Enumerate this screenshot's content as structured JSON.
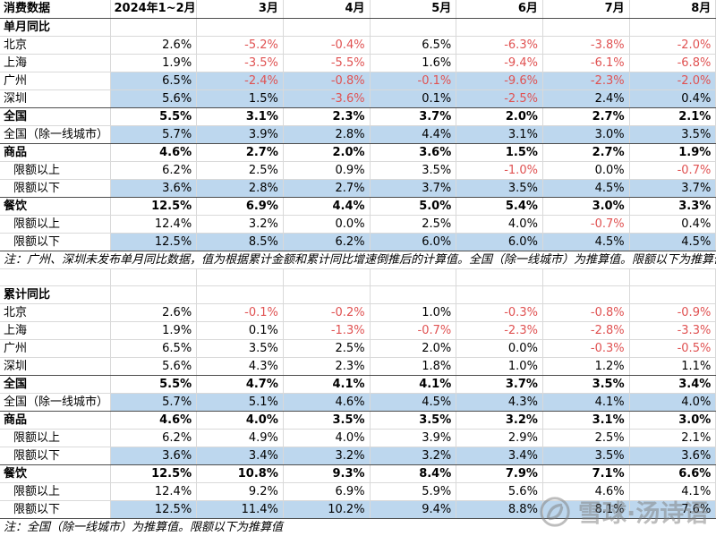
{
  "table": {
    "header_title": "消费数据",
    "columns": [
      "2024年1~2月",
      "3月",
      "4月",
      "5月",
      "6月",
      "7月",
      "8月"
    ],
    "sections": [
      {
        "title": "单月同比",
        "note": "注：广州、深圳未发布单月同比数据，值为根据累计金额和累计同比增速倒推后的计算值。全国（除一线城市）为推算值。限额以下为推算值",
        "rows": [
          {
            "label": "北京",
            "indent": false,
            "bold": false,
            "hl": false,
            "sep": false,
            "values": [
              "2.6%",
              "-5.2%",
              "-0.4%",
              "6.5%",
              "-6.3%",
              "-3.8%",
              "-2.0%"
            ]
          },
          {
            "label": "上海",
            "indent": false,
            "bold": false,
            "hl": false,
            "sep": false,
            "values": [
              "1.9%",
              "-3.5%",
              "-5.5%",
              "1.6%",
              "-9.4%",
              "-6.1%",
              "-6.8%"
            ]
          },
          {
            "label": "广州",
            "indent": false,
            "bold": false,
            "hl": true,
            "sep": false,
            "values": [
              "6.5%",
              "-2.4%",
              "-0.8%",
              "-0.1%",
              "-9.6%",
              "-2.3%",
              "-2.0%"
            ]
          },
          {
            "label": "深圳",
            "indent": false,
            "bold": false,
            "hl": true,
            "sep": true,
            "values": [
              "5.6%",
              "1.5%",
              "-3.6%",
              "0.1%",
              "-2.5%",
              "2.4%",
              "0.4%"
            ]
          },
          {
            "label": "全国",
            "indent": false,
            "bold": true,
            "hl": false,
            "sep": false,
            "values": [
              "5.5%",
              "3.1%",
              "2.3%",
              "3.7%",
              "2.0%",
              "2.7%",
              "2.1%"
            ]
          },
          {
            "label": "全国（除一线城市）",
            "indent": false,
            "bold": false,
            "hl": true,
            "sep": true,
            "values": [
              "5.7%",
              "3.9%",
              "2.8%",
              "4.4%",
              "3.1%",
              "3.0%",
              "3.5%"
            ]
          },
          {
            "label": "商品",
            "indent": false,
            "bold": true,
            "hl": false,
            "sep": false,
            "values": [
              "4.6%",
              "2.7%",
              "2.0%",
              "3.6%",
              "1.5%",
              "2.7%",
              "1.9%"
            ]
          },
          {
            "label": "限额以上",
            "indent": true,
            "bold": false,
            "hl": false,
            "sep": false,
            "values": [
              "6.2%",
              "2.5%",
              "0.9%",
              "3.5%",
              "-1.0%",
              "0.0%",
              "-0.7%"
            ]
          },
          {
            "label": "限额以下",
            "indent": true,
            "bold": false,
            "hl": true,
            "sep": true,
            "values": [
              "3.6%",
              "2.8%",
              "2.7%",
              "3.7%",
              "3.5%",
              "4.5%",
              "3.7%"
            ]
          },
          {
            "label": "餐饮",
            "indent": false,
            "bold": true,
            "hl": false,
            "sep": false,
            "values": [
              "12.5%",
              "6.9%",
              "4.4%",
              "5.0%",
              "5.4%",
              "3.0%",
              "3.3%"
            ]
          },
          {
            "label": "限额以上",
            "indent": true,
            "bold": false,
            "hl": false,
            "sep": false,
            "values": [
              "12.4%",
              "3.2%",
              "0.0%",
              "2.5%",
              "4.0%",
              "-0.7%",
              "0.4%"
            ]
          },
          {
            "label": "限额以下",
            "indent": true,
            "bold": false,
            "hl": true,
            "sep": true,
            "values": [
              "12.5%",
              "8.5%",
              "6.2%",
              "6.0%",
              "6.0%",
              "4.5%",
              "4.5%"
            ]
          }
        ]
      },
      {
        "title": "累计同比",
        "note": "注：全国（除一线城市）为推算值。限额以下为推算值",
        "rows": [
          {
            "label": "北京",
            "indent": false,
            "bold": false,
            "hl": false,
            "sep": false,
            "values": [
              "2.6%",
              "-0.1%",
              "-0.2%",
              "1.0%",
              "-0.3%",
              "-0.8%",
              "-0.9%"
            ]
          },
          {
            "label": "上海",
            "indent": false,
            "bold": false,
            "hl": false,
            "sep": false,
            "values": [
              "1.9%",
              "0.1%",
              "-1.3%",
              "-0.7%",
              "-2.3%",
              "-2.8%",
              "-3.3%"
            ]
          },
          {
            "label": "广州",
            "indent": false,
            "bold": false,
            "hl": false,
            "sep": false,
            "values": [
              "6.5%",
              "3.5%",
              "2.5%",
              "2.0%",
              "0.0%",
              "-0.3%",
              "-0.5%"
            ]
          },
          {
            "label": "深圳",
            "indent": false,
            "bold": false,
            "hl": false,
            "sep": true,
            "values": [
              "5.6%",
              "4.3%",
              "2.3%",
              "1.8%",
              "1.0%",
              "1.2%",
              "1.1%"
            ]
          },
          {
            "label": "全国",
            "indent": false,
            "bold": true,
            "hl": false,
            "sep": false,
            "values": [
              "5.5%",
              "4.7%",
              "4.1%",
              "4.1%",
              "3.7%",
              "3.5%",
              "3.4%"
            ]
          },
          {
            "label": "全国（除一线城市）",
            "indent": false,
            "bold": false,
            "hl": true,
            "sep": true,
            "values": [
              "5.7%",
              "5.1%",
              "4.6%",
              "4.5%",
              "4.3%",
              "4.1%",
              "4.0%"
            ]
          },
          {
            "label": "商品",
            "indent": false,
            "bold": true,
            "hl": false,
            "sep": false,
            "values": [
              "4.6%",
              "4.0%",
              "3.5%",
              "3.5%",
              "3.2%",
              "3.1%",
              "3.0%"
            ]
          },
          {
            "label": "限额以上",
            "indent": true,
            "bold": false,
            "hl": false,
            "sep": false,
            "values": [
              "6.2%",
              "4.9%",
              "4.0%",
              "3.9%",
              "2.9%",
              "2.5%",
              "2.1%"
            ]
          },
          {
            "label": "限额以下",
            "indent": true,
            "bold": false,
            "hl": true,
            "sep": true,
            "values": [
              "3.6%",
              "3.4%",
              "3.2%",
              "3.2%",
              "3.4%",
              "3.5%",
              "3.6%"
            ]
          },
          {
            "label": "餐饮",
            "indent": false,
            "bold": true,
            "hl": false,
            "sep": false,
            "values": [
              "12.5%",
              "10.8%",
              "9.3%",
              "8.4%",
              "7.9%",
              "7.1%",
              "6.6%"
            ]
          },
          {
            "label": "限额以上",
            "indent": true,
            "bold": false,
            "hl": false,
            "sep": false,
            "values": [
              "12.4%",
              "9.2%",
              "6.9%",
              "5.9%",
              "5.6%",
              "4.6%",
              "4.1%"
            ]
          },
          {
            "label": "限额以下",
            "indent": true,
            "bold": false,
            "hl": true,
            "sep": true,
            "values": [
              "12.5%",
              "11.4%",
              "10.2%",
              "9.4%",
              "8.8%",
              "8.1%",
              "7.6%"
            ]
          }
        ]
      }
    ]
  },
  "watermark": {
    "text": "雪球·汤诗语"
  },
  "colors": {
    "highlight": "#bdd7ee",
    "negative": "#e05252",
    "gridline": "#d9d9d9",
    "section_border": "#4d4d4d"
  }
}
